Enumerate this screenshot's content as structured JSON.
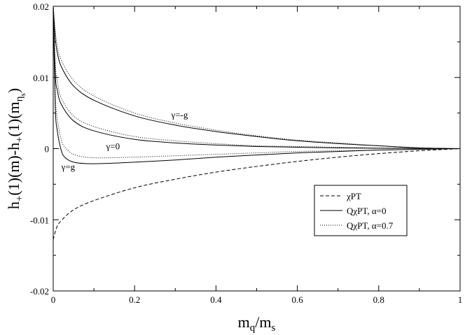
{
  "chart_data": {
    "type": "line",
    "xlabel": {
      "main": "m",
      "sub1": "q",
      "mid": "/m",
      "sub2": "s"
    },
    "ylabel": {
      "p1": "h",
      "s1": "+",
      "p2": "(1)(m)-h",
      "s2": "+",
      "p3": "(1)(m",
      "s3": "η",
      "s3sub": "s",
      "p4": ")"
    },
    "xlim": [
      0,
      1
    ],
    "ylim": [
      -0.02,
      0.02
    ],
    "xticks": [
      0,
      0.2,
      0.4,
      0.6,
      0.8,
      1
    ],
    "xtick_labels": [
      "0",
      "0.2",
      "0.4",
      "0.6",
      "0.8",
      "1"
    ],
    "yticks": [
      -0.02,
      -0.01,
      0,
      0.01,
      0.02
    ],
    "ytick_labels": [
      "-0.02",
      "-0.01",
      "0",
      "0.01",
      "0.02"
    ],
    "grid": false,
    "legend_position": "lower-right",
    "legend": [
      {
        "label": "χPT",
        "style": "dashed"
      },
      {
        "label": "QχPT, α=0",
        "style": "solid"
      },
      {
        "label": "QχPT, α=0.7",
        "style": "dotted"
      }
    ],
    "series": [
      {
        "group": "χPT",
        "style": "dashed",
        "x": [
          0.0,
          0.005,
          0.01,
          0.02,
          0.05,
          0.1,
          0.2,
          0.3,
          0.4,
          0.5,
          0.6,
          0.7,
          0.8,
          0.9,
          1.0
        ],
        "y": [
          -0.0128,
          -0.0117,
          -0.0109,
          -0.0101,
          -0.0086,
          -0.0073,
          -0.0055,
          -0.0043,
          -0.0033,
          -0.0025,
          -0.0018,
          -0.0012,
          -0.0007,
          -0.0003,
          0.0
        ]
      },
      {
        "group": "QχPT, α=0",
        "style": "solid",
        "x": [
          0.0,
          0.005,
          0.01,
          0.02,
          0.05,
          0.1,
          0.2,
          0.3,
          0.4,
          0.5,
          0.6,
          0.7,
          0.8,
          0.9,
          1.0
        ],
        "y": [
          0.02,
          0.0155,
          0.0135,
          0.0115,
          0.0088,
          0.0068,
          0.0046,
          0.0033,
          0.0024,
          0.0017,
          0.0011,
          0.0007,
          0.0004,
          0.0001,
          0.0
        ]
      },
      {
        "group": "QχPT, α=0",
        "style": "solid",
        "x": [
          0.0,
          0.005,
          0.01,
          0.02,
          0.05,
          0.1,
          0.2,
          0.3,
          0.4,
          0.5,
          0.6,
          0.7,
          0.8,
          0.9,
          1.0
        ],
        "y": [
          0.02,
          0.0105,
          0.0082,
          0.0062,
          0.0039,
          0.0025,
          0.0013,
          0.0008,
          0.0005,
          0.0003,
          0.0002,
          0.0001,
          5e-05,
          2e-05,
          0.0
        ]
      },
      {
        "group": "QχPT, α=0",
        "style": "solid",
        "x": [
          0.0,
          0.005,
          0.01,
          0.02,
          0.03,
          0.05,
          0.08,
          0.12,
          0.2,
          0.3,
          0.4,
          0.5,
          0.6,
          0.7,
          0.8,
          0.9,
          1.0
        ],
        "y": [
          0.02,
          0.006,
          0.0025,
          -0.0003,
          -0.0013,
          -0.0019,
          -0.0021,
          -0.0021,
          -0.0019,
          -0.0016,
          -0.0012,
          -0.0009,
          -0.0006,
          -0.0004,
          -0.0002,
          -0.0001,
          0.0
        ]
      },
      {
        "group": "QχPT, α=0.7",
        "style": "dotted",
        "x": [
          0.0,
          0.005,
          0.01,
          0.02,
          0.05,
          0.1,
          0.2,
          0.3,
          0.4,
          0.5,
          0.6,
          0.7,
          0.8,
          0.9,
          1.0
        ],
        "y": [
          0.02,
          0.0165,
          0.0145,
          0.0124,
          0.0096,
          0.0074,
          0.005,
          0.0036,
          0.0026,
          0.0018,
          0.0012,
          0.0008,
          0.0004,
          0.0001,
          0.0
        ]
      },
      {
        "group": "QχPT, α=0.7",
        "style": "dotted",
        "x": [
          0.0,
          0.005,
          0.01,
          0.02,
          0.05,
          0.1,
          0.2,
          0.3,
          0.4,
          0.5,
          0.6,
          0.7,
          0.8,
          0.9,
          1.0
        ],
        "y": [
          0.02,
          0.012,
          0.0095,
          0.0071,
          0.0046,
          0.0031,
          0.0017,
          0.0011,
          0.0007,
          0.0004,
          0.0003,
          0.0002,
          0.0001,
          4e-05,
          0.0
        ]
      },
      {
        "group": "QχPT, α=0.7",
        "style": "dotted",
        "x": [
          0.0,
          0.005,
          0.01,
          0.02,
          0.03,
          0.05,
          0.08,
          0.12,
          0.2,
          0.3,
          0.4,
          0.5,
          0.6,
          0.7,
          0.8,
          0.9,
          1.0
        ],
        "y": [
          0.02,
          0.0078,
          0.0042,
          0.0012,
          0.0001,
          -0.0008,
          -0.0012,
          -0.0013,
          -0.0012,
          -0.001,
          -0.0008,
          -0.0006,
          -0.0004,
          -0.0003,
          -0.0002,
          -0.0001,
          0.0
        ]
      }
    ],
    "annotations": [
      {
        "text": "γ=-g",
        "x": 0.29,
        "y": 0.0043
      },
      {
        "text": "γ=0",
        "x": 0.13,
        "y": -0.0001
      },
      {
        "text": "γ=g",
        "x": 0.02,
        "y": -0.003
      }
    ]
  }
}
